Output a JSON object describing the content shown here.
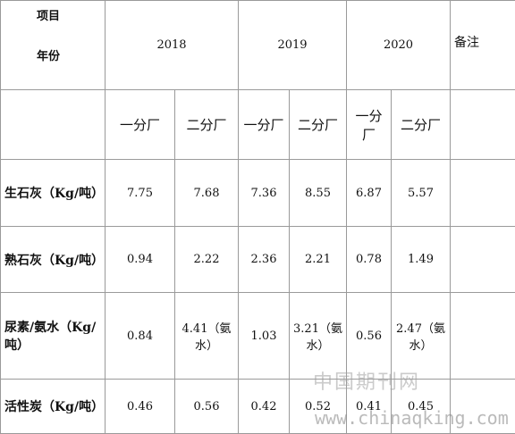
{
  "header": {
    "item_label": "项目",
    "year_label": "年份",
    "years": [
      "2018",
      "2019",
      "2020"
    ],
    "note": "备注"
  },
  "subheader": [
    "一分厂",
    "二分厂",
    "一分厂",
    "二分厂",
    "一分厂",
    "二分厂"
  ],
  "table": {
    "rows": [
      [
        "生石灰（Kg/吨）",
        "7.75",
        "7.68",
        "7.36",
        "8.55",
        "6.87",
        "5.57"
      ],
      [
        "熟石灰（Kg/吨）",
        "0.94",
        "2.22",
        "2.36",
        "2.21",
        "0.78",
        "1.49"
      ],
      [
        "尿素/氨水（Kg/吨）",
        "0.84",
        "4.41（氨水）",
        "1.03",
        "3.21（氨水）",
        "0.56",
        "2.47（氨水）"
      ],
      [
        "活性炭（Kg/吨）",
        "0.46",
        "0.56",
        "0.42",
        "0.52",
        "0.41",
        "0.45"
      ]
    ]
  },
  "watermark": [
    "中国期刊网",
    "www.chinaqking.com"
  ]
}
